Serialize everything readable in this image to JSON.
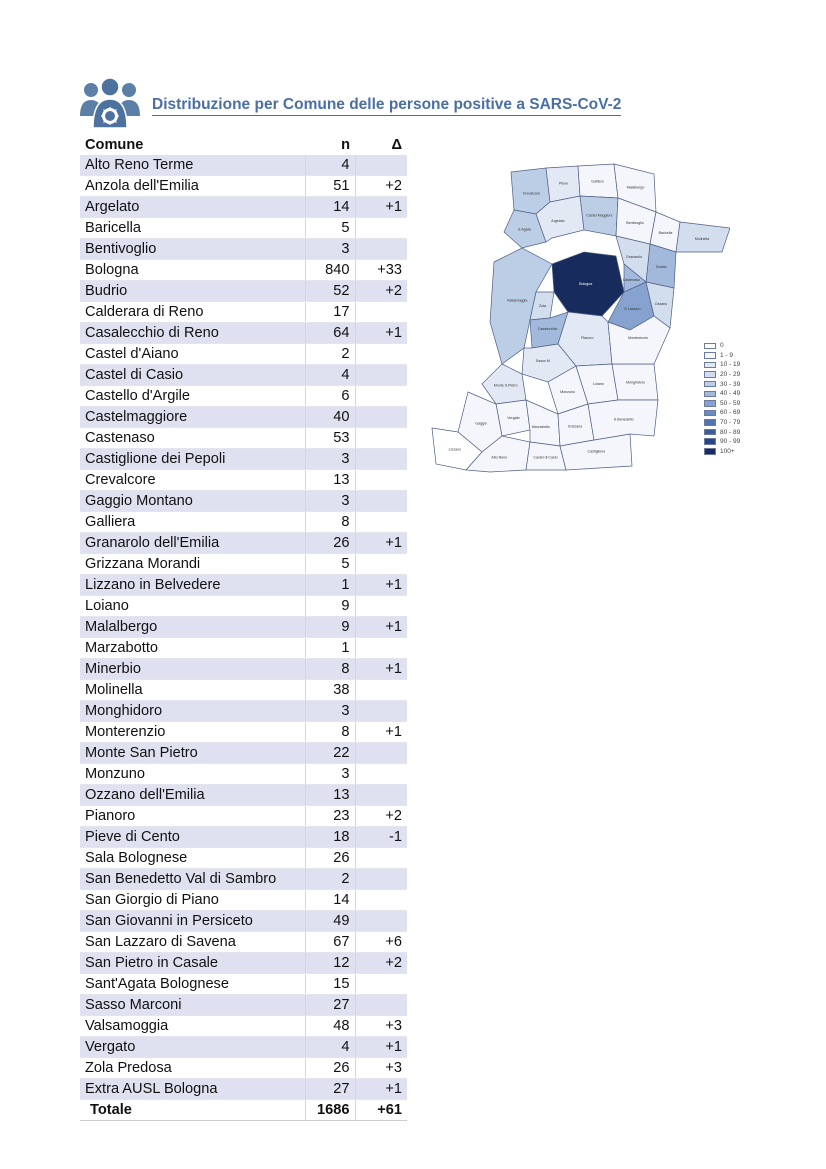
{
  "title": "Distribuzione per Comune delle persone positive a SARS-CoV-2",
  "icon": "people-group-icon",
  "colors": {
    "title": "#4a6fa5",
    "row_shade": "#dfe1f0",
    "icon": "#5c7fa8"
  },
  "table": {
    "headers": {
      "comune": "Comune",
      "n": "n",
      "delta": "Δ"
    },
    "rows": [
      {
        "comune": "Alto Reno Terme",
        "n": "4",
        "delta": ""
      },
      {
        "comune": "Anzola dell'Emilia",
        "n": "51",
        "delta": "+2"
      },
      {
        "comune": "Argelato",
        "n": "14",
        "delta": "+1"
      },
      {
        "comune": "Baricella",
        "n": "5",
        "delta": ""
      },
      {
        "comune": "Bentivoglio",
        "n": "3",
        "delta": ""
      },
      {
        "comune": "Bologna",
        "n": "840",
        "delta": "+33"
      },
      {
        "comune": "Budrio",
        "n": "52",
        "delta": "+2"
      },
      {
        "comune": "Calderara di Reno",
        "n": "17",
        "delta": ""
      },
      {
        "comune": "Casalecchio di Reno",
        "n": "64",
        "delta": "+1"
      },
      {
        "comune": "Castel d'Aiano",
        "n": "2",
        "delta": ""
      },
      {
        "comune": "Castel di Casio",
        "n": "4",
        "delta": ""
      },
      {
        "comune": "Castello d'Argile",
        "n": "6",
        "delta": ""
      },
      {
        "comune": "Castelmaggiore",
        "n": "40",
        "delta": ""
      },
      {
        "comune": "Castenaso",
        "n": "53",
        "delta": ""
      },
      {
        "comune": "Castiglione dei Pepoli",
        "n": "3",
        "delta": ""
      },
      {
        "comune": "Crevalcore",
        "n": "13",
        "delta": ""
      },
      {
        "comune": "Gaggio Montano",
        "n": "3",
        "delta": ""
      },
      {
        "comune": "Galliera",
        "n": "8",
        "delta": ""
      },
      {
        "comune": "Granarolo dell'Emilia",
        "n": "26",
        "delta": "+1"
      },
      {
        "comune": "Grizzana Morandi",
        "n": "5",
        "delta": ""
      },
      {
        "comune": "Lizzano in Belvedere",
        "n": "1",
        "delta": "+1"
      },
      {
        "comune": "Loiano",
        "n": "9",
        "delta": ""
      },
      {
        "comune": "Malalbergo",
        "n": "9",
        "delta": "+1"
      },
      {
        "comune": "Marzabotto",
        "n": "1",
        "delta": ""
      },
      {
        "comune": "Minerbio",
        "n": "8",
        "delta": "+1"
      },
      {
        "comune": "Molinella",
        "n": "38",
        "delta": ""
      },
      {
        "comune": "Monghidoro",
        "n": "3",
        "delta": ""
      },
      {
        "comune": "Monterenzio",
        "n": "8",
        "delta": "+1"
      },
      {
        "comune": "Monte San Pietro",
        "n": "22",
        "delta": ""
      },
      {
        "comune": "Monzuno",
        "n": "3",
        "delta": ""
      },
      {
        "comune": "Ozzano dell'Emilia",
        "n": "13",
        "delta": ""
      },
      {
        "comune": "Pianoro",
        "n": "23",
        "delta": "+2"
      },
      {
        "comune": "Pieve di Cento",
        "n": "18",
        "delta": "-1"
      },
      {
        "comune": "Sala Bolognese",
        "n": "26",
        "delta": ""
      },
      {
        "comune": "San Benedetto Val di Sambro",
        "n": "2",
        "delta": ""
      },
      {
        "comune": "San Giorgio di Piano",
        "n": "14",
        "delta": ""
      },
      {
        "comune": "San Giovanni in Persiceto",
        "n": "49",
        "delta": ""
      },
      {
        "comune": "San Lazzaro di Savena",
        "n": "67",
        "delta": "+6"
      },
      {
        "comune": "San Pietro in Casale",
        "n": "12",
        "delta": "+2"
      },
      {
        "comune": "Sant'Agata Bolognese",
        "n": "15",
        "delta": ""
      },
      {
        "comune": "Sasso Marconi",
        "n": "27",
        "delta": ""
      },
      {
        "comune": "Valsamoggia",
        "n": "48",
        "delta": "+3"
      },
      {
        "comune": "Vergato",
        "n": "4",
        "delta": "+1"
      },
      {
        "comune": "Zola Predosa",
        "n": "26",
        "delta": "+3"
      },
      {
        "comune": "Extra AUSL Bologna",
        "n": "27",
        "delta": "+1"
      }
    ],
    "total": {
      "label": "Totale",
      "n": "1686",
      "delta": "+61"
    }
  },
  "legend": [
    {
      "label": "0",
      "color": "#ffffff"
    },
    {
      "label": "1 - 9",
      "color": "#f4f6fb"
    },
    {
      "label": "10 - 19",
      "color": "#e3e9f4"
    },
    {
      "label": "20 - 29",
      "color": "#d2ddee"
    },
    {
      "label": "30 - 39",
      "color": "#bccde6"
    },
    {
      "label": "40 - 49",
      "color": "#a2b9db"
    },
    {
      "label": "50 - 59",
      "color": "#86a3cf"
    },
    {
      "label": "60 - 69",
      "color": "#6a8cc0"
    },
    {
      "label": "70 - 79",
      "color": "#5273ad"
    },
    {
      "label": "80 - 89",
      "color": "#3c5b98"
    },
    {
      "label": "90 - 99",
      "color": "#2a4682"
    },
    {
      "label": "100+",
      "color": "#172b5c"
    }
  ],
  "map": {
    "labels": [
      "Crevalcore",
      "S.Agata",
      "Pieve",
      "Galliera",
      "Malalbergo",
      "Argelato",
      "Castel Maggiore",
      "Bentivoglio",
      "Baricella",
      "Molinella",
      "Budrio",
      "Granarolo",
      "Bologna",
      "S.Lazzaro",
      "Castenaso",
      "Ozzano",
      "Valsamoggia",
      "Zola",
      "Casalecchio",
      "Pianoro",
      "Sasso M.",
      "Monte S.Pietro",
      "Monzuno",
      "Loiano",
      "Monghidoro",
      "Monterenzio",
      "Vergato",
      "Marzabotto",
      "Grizzana",
      "Gaggio",
      "Lizzano",
      "Alto Reno",
      "Castel di Casio",
      "Castiglione",
      "S.Benedetto"
    ]
  }
}
